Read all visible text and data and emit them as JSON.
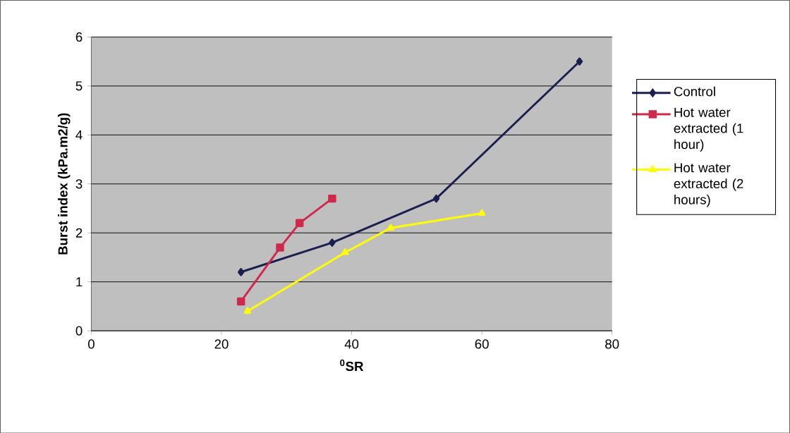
{
  "chart_data": {
    "type": "line",
    "xlabel": "$^{0}$SR",
    "ylabel": "Burst index (kPa.m2/g)",
    "xlim": [
      0,
      80
    ],
    "ylim": [
      0,
      6
    ],
    "xticks": [
      0,
      20,
      40,
      60,
      80
    ],
    "yticks": [
      0,
      1,
      2,
      3,
      4,
      5,
      6
    ],
    "grid": "y",
    "legend": "right",
    "series": [
      {
        "name": "Control",
        "color": "#1a1f4f",
        "marker": "diamond",
        "x": [
          23,
          37,
          53,
          75
        ],
        "values": [
          1.2,
          1.8,
          2.7,
          5.5
        ]
      },
      {
        "name": "Hot water extracted (1 hour)",
        "color": "#d0284a",
        "marker": "square",
        "x": [
          23,
          29,
          32,
          37
        ],
        "values": [
          0.6,
          1.7,
          2.2,
          2.7
        ]
      },
      {
        "name": "Hot water extracted (2 hours)",
        "color": "#ffff00",
        "marker": "triangle",
        "x": [
          24,
          39,
          46,
          60
        ],
        "values": [
          0.4,
          1.6,
          2.1,
          2.4
        ]
      }
    ]
  }
}
